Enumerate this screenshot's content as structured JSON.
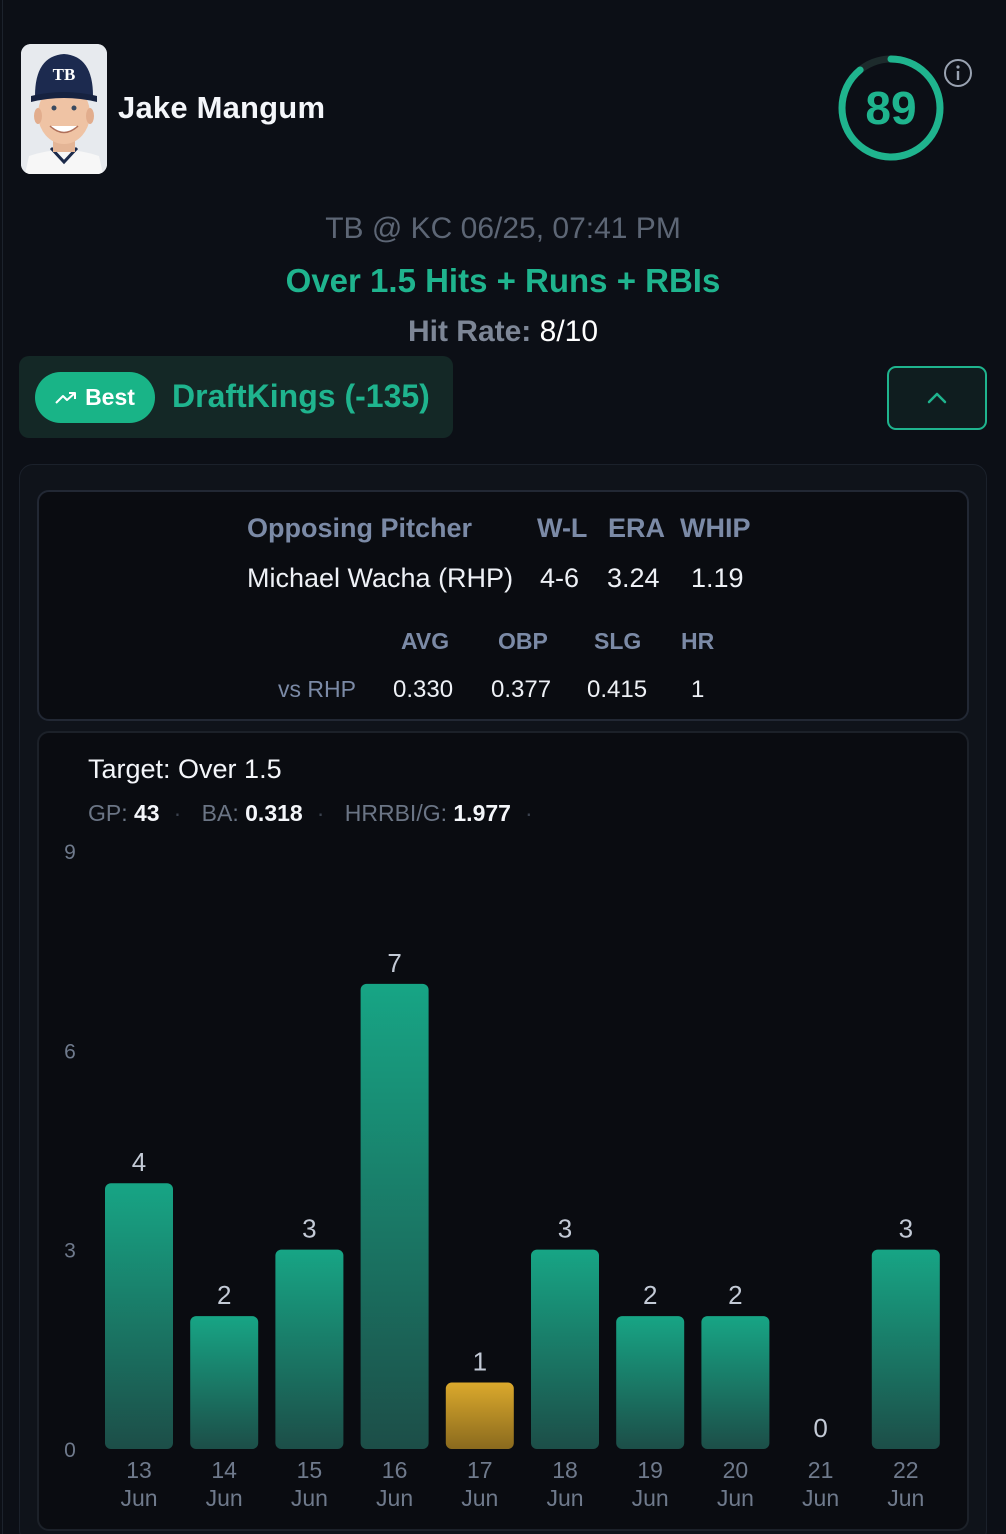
{
  "player": {
    "name": "Jake Mangum",
    "cap_logo": "TB"
  },
  "score": {
    "value": "89",
    "fraction": 0.89,
    "color": "#1fb48e"
  },
  "game": {
    "matchup": "TB @ KC 06/25, 07:41 PM"
  },
  "prop": {
    "label": "Over 1.5 Hits + Runs + RBIs"
  },
  "hit_rate": {
    "label": "Hit Rate:",
    "value": "8/10"
  },
  "book": {
    "badge": "Best",
    "badge_icon": "trending-up-icon",
    "label": "DraftKings (-135)"
  },
  "pitcher": {
    "headers": {
      "name": "Opposing Pitcher",
      "wl": "W-L",
      "era": "ERA",
      "whip": "WHIP"
    },
    "values": {
      "name": "Michael Wacha (RHP)",
      "wl": "4-6",
      "era": "3.24",
      "whip": "1.19"
    },
    "split": {
      "headers": {
        "avg": "AVG",
        "obp": "OBP",
        "slg": "SLG",
        "hr": "HR"
      },
      "label": "vs RHP",
      "values": {
        "avg": "0.330",
        "obp": "0.377",
        "slg": "0.415",
        "hr": "1"
      }
    }
  },
  "summary": {
    "target": "Target: Over 1.5",
    "gp_label": "GP:",
    "gp": "43",
    "ba_label": "BA:",
    "ba": "0.318",
    "hrrbi_label": "HRRBI/G:",
    "hrrbi": "1.977"
  },
  "chart_data": {
    "type": "bar",
    "categories": [
      [
        "13",
        "Jun"
      ],
      [
        "14",
        "Jun"
      ],
      [
        "15",
        "Jun"
      ],
      [
        "16",
        "Jun"
      ],
      [
        "17",
        "Jun"
      ],
      [
        "18",
        "Jun"
      ],
      [
        "19",
        "Jun"
      ],
      [
        "20",
        "Jun"
      ],
      [
        "21",
        "Jun"
      ],
      [
        "22",
        "Jun"
      ]
    ],
    "values": [
      4,
      2,
      3,
      7,
      1,
      3,
      2,
      2,
      0,
      3
    ],
    "target": 1.5,
    "ylim": [
      0,
      9
    ],
    "yticks": [
      0,
      3,
      6,
      9
    ],
    "colors": {
      "hit": "#1a9b80",
      "miss": "#d4a22a"
    }
  }
}
